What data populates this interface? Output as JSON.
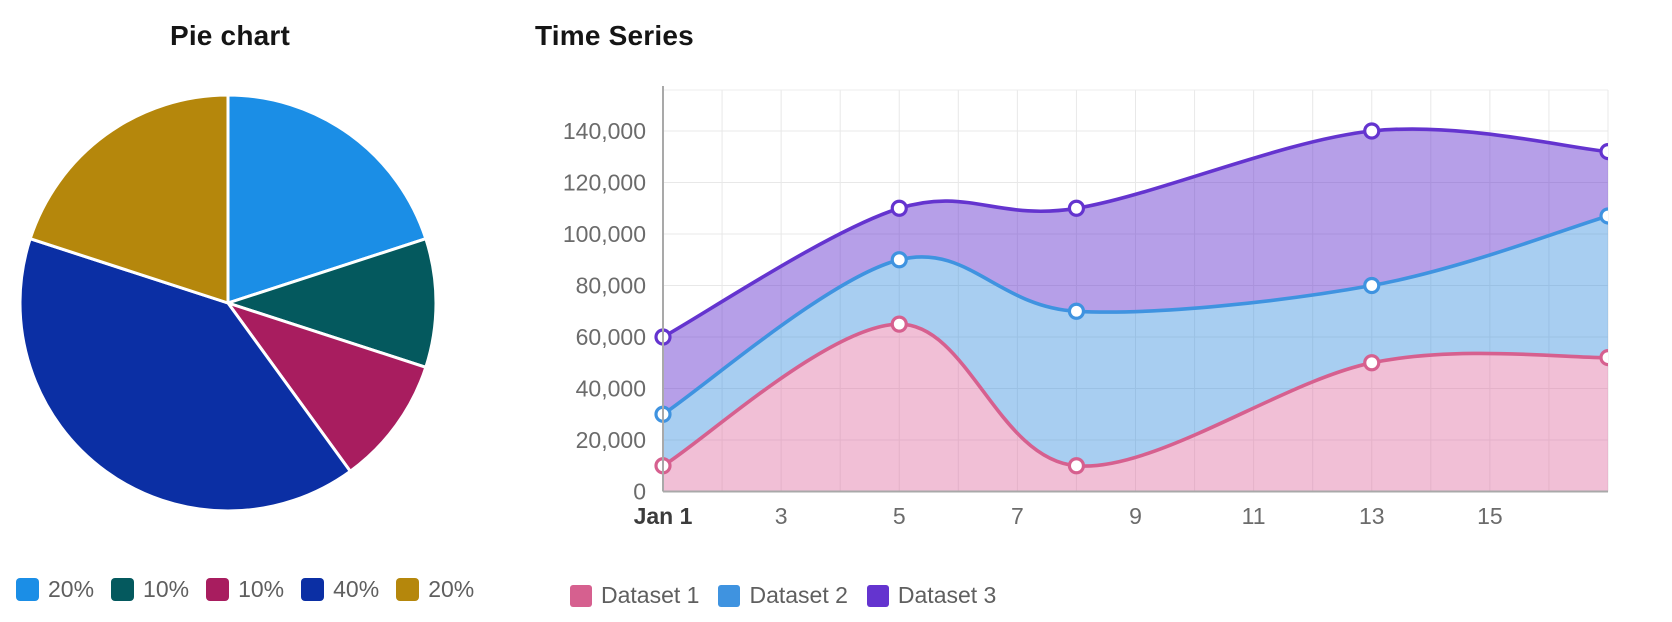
{
  "chart_data": [
    {
      "type": "pie",
      "title": "Pie chart",
      "start_angle_deg_from_north": 0,
      "direction": "clockwise",
      "slices": [
        {
          "label": "20%",
          "value": 20,
          "color": "#1b8ee6"
        },
        {
          "label": "10%",
          "value": 10,
          "color": "#04595e"
        },
        {
          "label": "10%",
          "value": 10,
          "color": "#a81d5f"
        },
        {
          "label": "40%",
          "value": 40,
          "color": "#0b2fa4"
        },
        {
          "label": "20%",
          "value": 20,
          "color": "#b5870c"
        }
      ],
      "legend_position": "bottom",
      "slice_border_color": "#ffffff"
    },
    {
      "type": "area",
      "title": "Time Series",
      "x_days": [
        1,
        5,
        8,
        13,
        17
      ],
      "x_range": [
        1,
        17
      ],
      "x_tick_days": [
        1,
        3,
        5,
        7,
        9,
        11,
        13,
        15
      ],
      "x_tick_labels": [
        "Jan 1",
        "3",
        "5",
        "7",
        "9",
        "11",
        "13",
        "15"
      ],
      "ylim": [
        0,
        156000
      ],
      "y_ticks": [
        0,
        20000,
        40000,
        60000,
        80000,
        100000,
        120000,
        140000
      ],
      "y_tick_labels": [
        "0",
        "20,000",
        "40,000",
        "60,000",
        "80,000",
        "100,000",
        "120,000",
        "140,000"
      ],
      "grid": true,
      "curve": "smooth",
      "point_style": "circle-white-fill",
      "legend_position": "bottom",
      "series": [
        {
          "name": "Dataset 1",
          "line_color": "#d6608f",
          "fill_color": "#e170a4",
          "fill_opacity": 0.45,
          "fill_to": "origin",
          "values": [
            10000,
            65000,
            10000,
            50000,
            52000
          ]
        },
        {
          "name": "Dataset 2",
          "line_color": "#3f93e0",
          "fill_color": "#3f93e0",
          "fill_opacity": 0.45,
          "fill_to": "Dataset 1",
          "values": [
            30000,
            90000,
            70000,
            80000,
            107000
          ]
        },
        {
          "name": "Dataset 3",
          "line_color": "#6434cf",
          "fill_color": "#6434cf",
          "fill_opacity": 0.47,
          "fill_to": "Dataset 2",
          "values": [
            60000,
            110000,
            110000,
            140000,
            132000
          ]
        }
      ]
    }
  ]
}
